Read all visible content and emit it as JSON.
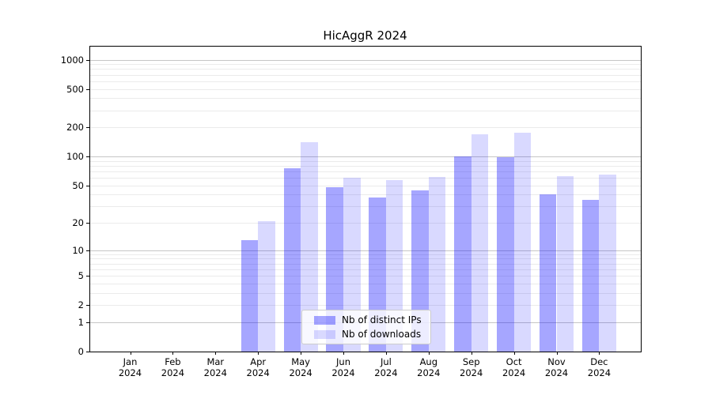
{
  "title": "HicAggR 2024",
  "legend": {
    "items": [
      {
        "label": "Nb of distinct IPs",
        "color": "rgba(0,0,255,0.35)"
      },
      {
        "label": "Nb of downloads",
        "color": "rgba(0,0,255,0.15)"
      }
    ]
  },
  "chart_data": {
    "type": "bar",
    "title": "HicAggR 2024",
    "categories": [
      "Jan 2024",
      "Feb 2024",
      "Mar 2024",
      "Apr 2024",
      "May 2024",
      "Jun 2024",
      "Jul 2024",
      "Aug 2024",
      "Sep 2024",
      "Oct 2024",
      "Nov 2024",
      "Dec 2024"
    ],
    "x_months": [
      "Jan",
      "Feb",
      "Mar",
      "Apr",
      "May",
      "Jun",
      "Jul",
      "Aug",
      "Sep",
      "Oct",
      "Nov",
      "Dec"
    ],
    "x_year": "2024",
    "series": [
      {
        "name": "Nb of distinct IPs",
        "color": "rgba(0,0,255,0.35)",
        "values": [
          0,
          0,
          0,
          13,
          75,
          48,
          37,
          44,
          100,
          98,
          40,
          35
        ]
      },
      {
        "name": "Nb of downloads",
        "color": "rgba(0,0,255,0.15)",
        "values": [
          0,
          0,
          0,
          21,
          142,
          60,
          57,
          61,
          170,
          175,
          62,
          65
        ]
      }
    ],
    "yscale": "log1p",
    "ylim": [
      0,
      1360
    ],
    "y_ticks": [
      0,
      1,
      2,
      5,
      10,
      20,
      50,
      100,
      200,
      500,
      1000
    ],
    "y_major_gridlines": [
      1,
      10,
      100,
      1000
    ],
    "y_minor_gridlines": [
      2,
      3,
      4,
      5,
      6,
      7,
      8,
      9,
      20,
      30,
      40,
      50,
      60,
      70,
      80,
      90,
      200,
      300,
      400,
      500,
      600,
      700,
      800,
      900
    ],
    "grid": true,
    "legend_position": "lower center inside plot",
    "bar_group": "grouped, 2 bars per month"
  },
  "colors": {
    "background": "#ffffff",
    "spine": "#000000",
    "major_grid": "#c6c6c6",
    "minor_grid": "#ebebeb",
    "series1": "rgba(0,0,255,0.35)",
    "series2": "rgba(0,0,255,0.15)"
  }
}
